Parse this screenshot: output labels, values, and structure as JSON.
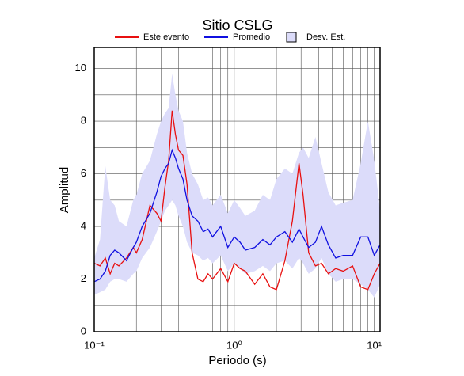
{
  "chart_data": {
    "type": "line",
    "title": "Sitio CSLG",
    "xlabel": "Periodo (s)",
    "ylabel": "Amplitud",
    "xscale": "log",
    "xlim": [
      0.1,
      11
    ],
    "ylim": [
      0,
      10.8
    ],
    "xticks": [
      {
        "value": 0.1,
        "label": "10⁻¹"
      },
      {
        "value": 1,
        "label": "10⁰"
      },
      {
        "value": 10,
        "label": "10¹"
      }
    ],
    "xminor": [
      0.2,
      0.3,
      0.4,
      0.5,
      0.6,
      0.7,
      0.8,
      0.9,
      2,
      3,
      4,
      5,
      6,
      7,
      8,
      9
    ],
    "yticks": [
      0,
      2,
      4,
      6,
      8,
      10
    ],
    "yminor": [
      1,
      3,
      5,
      7,
      9
    ],
    "grid": true,
    "legend": "top",
    "x": [
      0.1,
      0.11,
      0.12,
      0.13,
      0.14,
      0.15,
      0.17,
      0.19,
      0.2,
      0.22,
      0.25,
      0.28,
      0.3,
      0.32,
      0.34,
      0.36,
      0.38,
      0.4,
      0.43,
      0.46,
      0.5,
      0.55,
      0.6,
      0.65,
      0.7,
      0.8,
      0.9,
      1.0,
      1.1,
      1.2,
      1.4,
      1.6,
      1.8,
      2.0,
      2.3,
      2.6,
      2.9,
      3.1,
      3.4,
      3.8,
      4.2,
      4.7,
      5.3,
      6,
      7,
      8,
      9,
      10,
      11
    ],
    "series": [
      {
        "name": "Este evento",
        "color": "#e81010",
        "values": [
          2.6,
          2.5,
          2.8,
          2.2,
          2.6,
          2.5,
          2.8,
          3.2,
          3.0,
          3.5,
          4.8,
          4.5,
          4.2,
          5.5,
          6.5,
          8.4,
          7.5,
          6.9,
          6.7,
          5.6,
          3.0,
          2.0,
          1.9,
          2.2,
          2.0,
          2.4,
          1.9,
          2.6,
          2.4,
          2.3,
          1.8,
          2.2,
          1.7,
          1.6,
          2.7,
          4.2,
          6.4,
          5.2,
          3.0,
          2.5,
          2.6,
          2.2,
          2.4,
          2.3,
          2.5,
          1.7,
          1.6,
          2.2,
          2.6
        ]
      },
      {
        "name": "Promedio",
        "color": "#1010e0",
        "values": [
          1.9,
          2.0,
          2.3,
          2.9,
          3.1,
          3.0,
          2.7,
          3.2,
          3.4,
          4.0,
          4.5,
          5.3,
          5.9,
          6.2,
          6.4,
          6.9,
          6.6,
          6.2,
          5.8,
          5.0,
          4.4,
          4.2,
          3.8,
          3.9,
          3.6,
          4.0,
          3.2,
          3.6,
          3.4,
          3.1,
          3.2,
          3.5,
          3.3,
          3.6,
          3.8,
          3.4,
          3.9,
          3.6,
          3.2,
          3.4,
          4.0,
          3.3,
          2.8,
          2.9,
          2.9,
          3.6,
          3.6,
          2.9,
          3.3
        ]
      }
    ],
    "band": {
      "name": "Desv. Est.",
      "color": "#dcdcfa",
      "lower": [
        1.4,
        1.5,
        1.6,
        1.9,
        2.0,
        2.0,
        1.9,
        2.2,
        2.3,
        2.8,
        3.2,
        3.8,
        4.2,
        4.6,
        4.8,
        5.0,
        4.8,
        4.4,
        4.0,
        3.4,
        3.0,
        2.9,
        2.7,
        2.8,
        2.6,
        2.9,
        2.3,
        2.6,
        2.4,
        2.2,
        2.3,
        2.5,
        2.3,
        2.6,
        2.7,
        2.4,
        2.8,
        2.6,
        2.2,
        2.4,
        2.8,
        2.2,
        1.9,
        2.0,
        2.0,
        1.8,
        1.6,
        1.3,
        1.8
      ],
      "upper": [
        2.8,
        3.5,
        6.3,
        5.0,
        4.8,
        4.2,
        4.0,
        5.0,
        5.2,
        6.0,
        6.5,
        7.5,
        8.0,
        8.3,
        8.5,
        9.8,
        9.0,
        8.4,
        8.0,
        6.8,
        6.0,
        5.6,
        5.0,
        5.1,
        4.8,
        5.2,
        4.5,
        5.0,
        4.7,
        4.4,
        4.6,
        5.2,
        5.0,
        5.8,
        6.2,
        6.0,
        6.8,
        7.0,
        6.6,
        7.4,
        6.4,
        5.3,
        4.8,
        4.9,
        5.0,
        6.4,
        8.0,
        6.5,
        4.6
      ]
    }
  }
}
